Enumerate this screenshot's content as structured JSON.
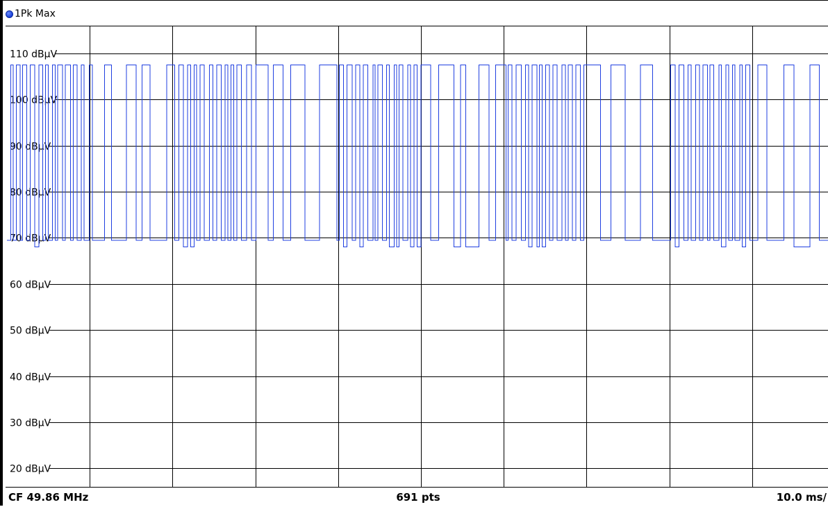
{
  "trace": {
    "label": "1Pk Max",
    "color": "#1f3fe0"
  },
  "footer": {
    "center_freq": "CF 49.86 MHz",
    "points": "691 pts",
    "time_div": "10.0 ms/"
  },
  "chart_data": {
    "type": "line",
    "title": "",
    "xlabel": "",
    "ylabel": "",
    "y_unit": "dBµV",
    "ylim": [
      16,
      116
    ],
    "y_ticks": [
      20,
      30,
      40,
      50,
      60,
      70,
      80,
      90,
      100,
      110
    ],
    "y_tick_labels": [
      "20 dBµV",
      "30 dBµV",
      "40 dBµV",
      "50 dBµV",
      "60 dBµV",
      "70 dBµV",
      "80 dBµV",
      "90 dBµV",
      "100 dBµV",
      "110 dBµV"
    ],
    "x_divisions": 10,
    "x_time_per_div_ms": 10.0,
    "x_total_ms": 100,
    "grid": true,
    "points": 691,
    "series": [
      {
        "name": "1Pk Max",
        "color": "#1f3fe0",
        "description_levels": {
          "high": 107.5,
          "low": 69.5,
          "low_dip": 68.0
        },
        "pattern_ms": [
          [
            0,
            0.6,
            "low"
          ],
          [
            0.6,
            1.0,
            "high"
          ],
          [
            1.0,
            1.3,
            "low"
          ],
          [
            1.3,
            1.8,
            "high"
          ],
          [
            1.8,
            2.1,
            "low"
          ],
          [
            2.1,
            2.5,
            "high"
          ],
          [
            2.5,
            2.8,
            "low"
          ],
          [
            2.8,
            3.2,
            "high"
          ],
          [
            3.2,
            3.5,
            "low"
          ],
          [
            3.5,
            4.0,
            "high"
          ],
          [
            4.0,
            4.2,
            "low"
          ],
          [
            4.2,
            4.6,
            "high"
          ],
          [
            4.6,
            4.9,
            "low"
          ],
          [
            4.9,
            5.3,
            "high"
          ],
          [
            5.3,
            5.6,
            "low"
          ],
          [
            5.6,
            6.3,
            "high"
          ],
          [
            6.3,
            6.6,
            "low"
          ],
          [
            6.6,
            7.0,
            "high"
          ],
          [
            7.0,
            7.3,
            "low"
          ],
          [
            7.3,
            7.6,
            "high"
          ],
          [
            7.6,
            7.9,
            "low"
          ],
          [
            7.9,
            8.2,
            "high"
          ],
          [
            8.2,
            8.5,
            "low"
          ],
          [
            8.5,
            8.8,
            "high"
          ],
          [
            8.8,
            9.1,
            "low"
          ],
          [
            9.1,
            9.4,
            "high"
          ],
          [
            9.4,
            9.7,
            "low"
          ],
          [
            9.7,
            10.1,
            "high"
          ]
        ],
        "burst_period_ms": 20,
        "duty": 0.5
      }
    ]
  }
}
